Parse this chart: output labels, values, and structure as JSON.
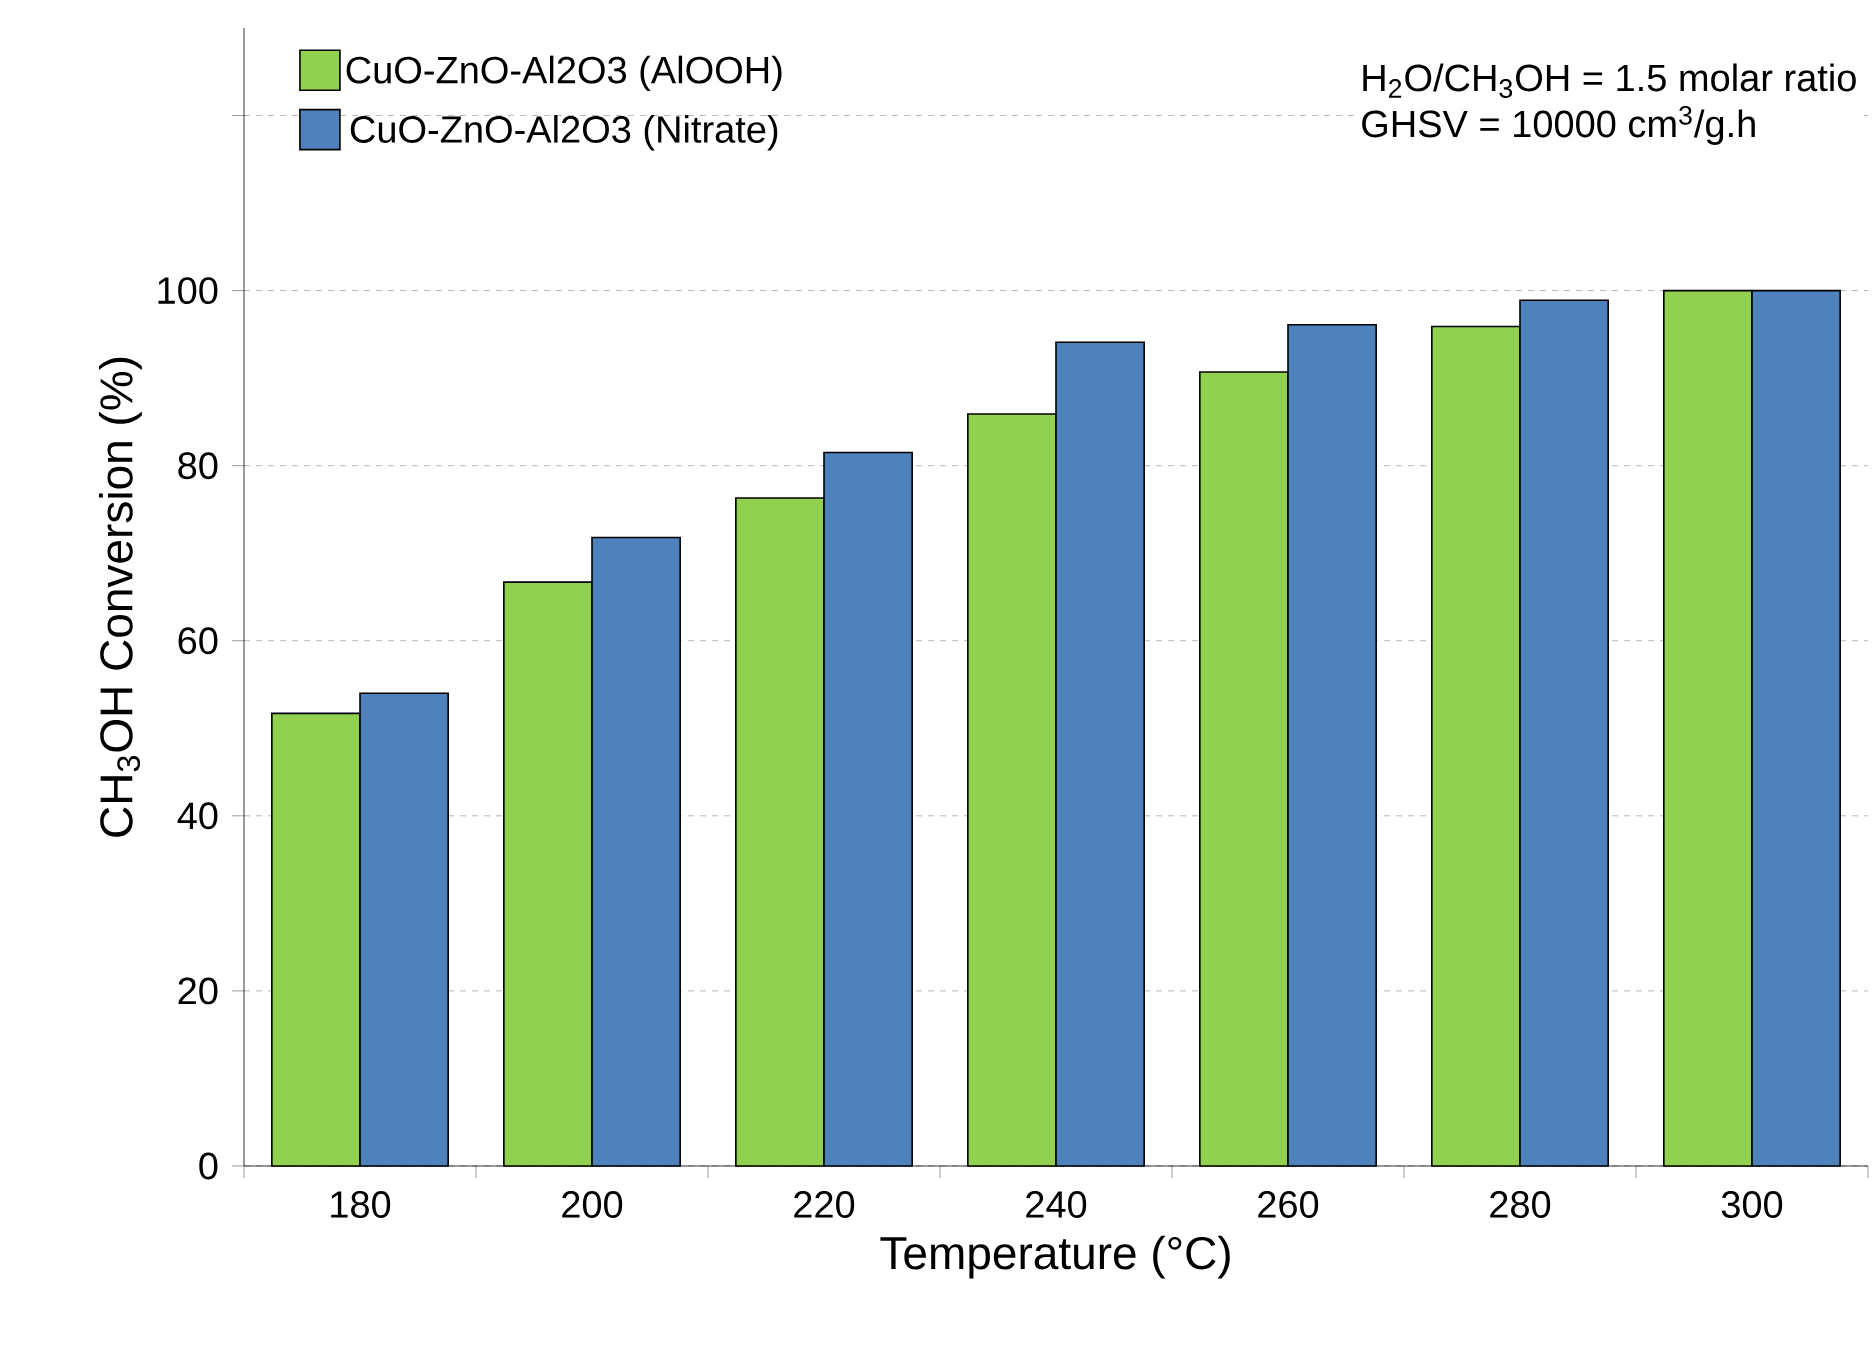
{
  "chart_data": {
    "type": "bar",
    "xlabel": "Temperature (°C)",
    "ylabel": "CH$_{3}$OH Conversion (%)",
    "categories": [
      "180",
      "200",
      "220",
      "240",
      "260",
      "280",
      "300"
    ],
    "series": [
      {
        "name": "CuO-ZnO-Al2O3 (AlOOH)",
        "color": "#92d050",
        "values": [
          51.7,
          66.7,
          76.3,
          85.9,
          90.7,
          95.9,
          100
        ]
      },
      {
        "name": "CuO-ZnO-Al2O3 (Nitrate)",
        "color": "#4f81bd",
        "values": [
          54.0,
          71.8,
          81.5,
          94.1,
          96.1,
          98.9,
          100
        ]
      }
    ],
    "ylim": [
      0,
      130
    ],
    "yticks": [
      0,
      20,
      40,
      60,
      80,
      100,
      {
        "value": 120,
        "label": null
      }
    ],
    "grid": "y",
    "legend": "top left",
    "annotations": [
      "H$_{2}$O/CH$_{3}$OH = 1.5 molar ratio",
      "GHSV = 10000 cm$^{3}$/g.h"
    ]
  }
}
